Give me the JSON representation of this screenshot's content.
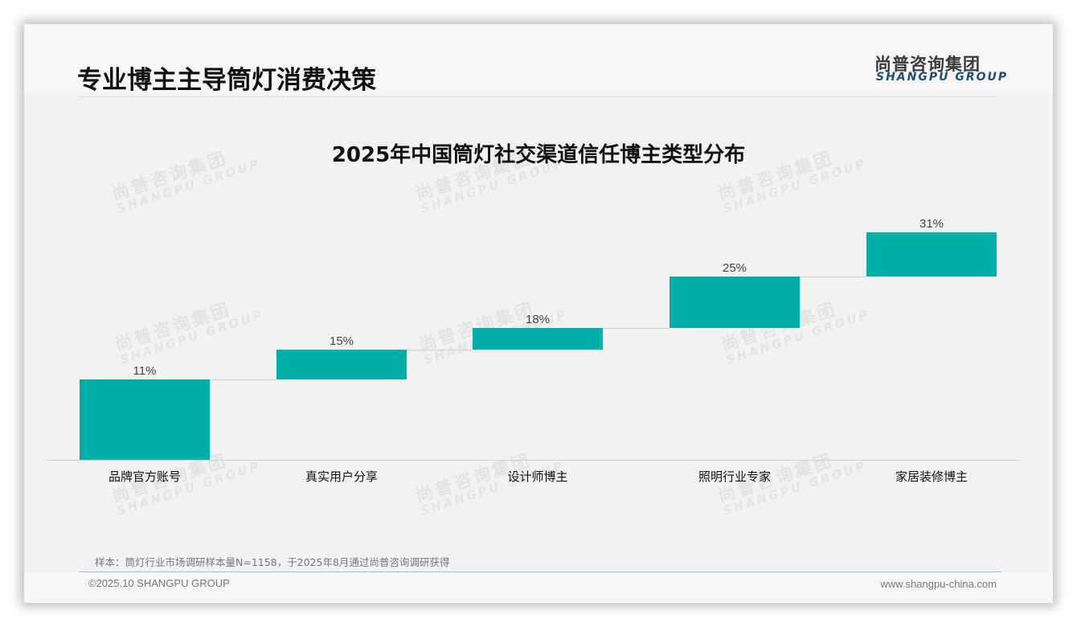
{
  "header": {
    "title": "专业博主主导筒灯消费决策",
    "logo_cn": "尚普咨询集团",
    "logo_en": "SHANGPU GROUP"
  },
  "watermark": {
    "cn": "尚普咨询集团",
    "en": "SHANGPU GROUP"
  },
  "chart_data": {
    "type": "bar",
    "subtype": "waterfall-style stepped bars",
    "title": "2025年中国筒灯社交渠道信任博主类型分布",
    "categories": [
      "品牌官方账号",
      "真实用户分享",
      "设计师博主",
      "照明行业专家",
      "家居装修博主"
    ],
    "values": [
      11,
      15,
      18,
      25,
      31
    ],
    "value_labels": [
      "11%",
      "15%",
      "18%",
      "25%",
      "31%"
    ],
    "unit": "%",
    "xlabel": "",
    "ylabel": "",
    "grid": false,
    "legend": null,
    "bar_color": "#00b0a8"
  },
  "footer": {
    "note": "样本：筒灯行业市场调研样本量N=1158，于2025年8月通过尚普咨询调研获得",
    "copyright": "©2025.10 SHANGPU GROUP",
    "website": "www.shangpu-china.com"
  }
}
